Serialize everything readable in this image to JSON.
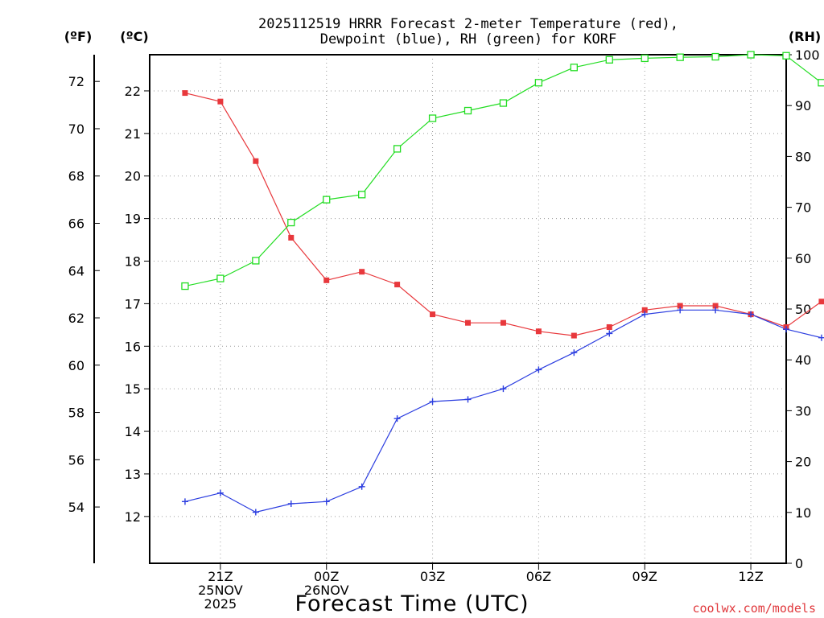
{
  "chart_data": {
    "type": "line",
    "title": [
      "2025112519 HRRR Forecast 2-meter Temperature (red),",
      "Dewpoint (blue), RH (green) for KORF"
    ],
    "units": {
      "fahrenheit": "(ºF)",
      "celsius": "(ºC)",
      "rh": "(RH)"
    },
    "xlabel": "Forecast Time (UTC)",
    "credit": "coolwx.com/models",
    "x_ticks": [
      {
        "lines": [
          "21Z",
          "25NOV",
          "2025"
        ],
        "hour": 2
      },
      {
        "lines": [
          "00Z",
          "26NOV"
        ],
        "hour": 5
      },
      {
        "lines": [
          "03Z"
        ],
        "hour": 8
      },
      {
        "lines": [
          "06Z"
        ],
        "hour": 11
      },
      {
        "lines": [
          "09Z"
        ],
        "hour": 14
      },
      {
        "lines": [
          "12Z"
        ],
        "hour": 17
      }
    ],
    "x_range": [
      0,
      18
    ],
    "ylim_c": [
      10.9,
      22.85
    ],
    "ylim_f": [
      51.62,
      73.13
    ],
    "ylim_rh": [
      0,
      100
    ],
    "y_ticks_c": [
      12,
      13,
      14,
      15,
      16,
      17,
      18,
      19,
      20,
      21,
      22
    ],
    "y_ticks_f": [
      54,
      56,
      58,
      60,
      62,
      64,
      66,
      68,
      70,
      72
    ],
    "y_ticks_rh": [
      0,
      10,
      20,
      30,
      40,
      50,
      60,
      70,
      80,
      90,
      100
    ],
    "series": [
      {
        "name": "Temperature",
        "axis": "celsius",
        "color": "#e8383c",
        "marker": "filled-square",
        "hours": [
          1,
          2,
          3,
          4,
          5,
          6,
          7,
          8,
          9,
          10,
          11,
          12,
          13,
          14,
          15,
          16,
          17,
          18
        ],
        "values": [
          21.95,
          21.75,
          20.35,
          18.55,
          17.55,
          17.75,
          17.45,
          16.75,
          16.55,
          16.55,
          16.35,
          16.25,
          16.45,
          16.85,
          16.95,
          16.95,
          16.75,
          16.45
        ]
      },
      {
        "name": "Temperature (end)",
        "axis": "celsius",
        "color": "#e8383c",
        "marker": "filled-square",
        "hours": [
          19
        ],
        "values": [
          17.05
        ]
      },
      {
        "name": "Dewpoint",
        "axis": "celsius",
        "color": "#2c3ee0",
        "marker": "plus",
        "hours": [
          1,
          2,
          3,
          4,
          5,
          6,
          7,
          8,
          9,
          10,
          11,
          12,
          13,
          14,
          15,
          16,
          17,
          18
        ],
        "values": [
          12.35,
          12.55,
          12.1,
          12.3,
          12.35,
          12.7,
          14.3,
          14.7,
          14.75,
          15.0,
          15.45,
          15.85,
          16.3,
          16.75,
          16.85,
          16.85,
          16.75,
          16.4
        ]
      },
      {
        "name": "Dewpoint (end)",
        "axis": "celsius",
        "color": "#2c3ee0",
        "marker": "plus",
        "hours": [
          19
        ],
        "values": [
          16.2
        ]
      },
      {
        "name": "RH",
        "axis": "rh",
        "color": "#22dd22",
        "marker": "open-square",
        "hours": [
          1,
          2,
          3,
          4,
          5,
          6,
          7,
          8,
          9,
          10,
          11,
          12,
          13,
          14,
          15,
          16,
          17,
          18
        ],
        "values": [
          54.5,
          56,
          59.5,
          67,
          71.5,
          72.5,
          81.5,
          87.5,
          89,
          90.5,
          94.5,
          97.5,
          99,
          99.3,
          99.5,
          99.6,
          100,
          99.8
        ]
      },
      {
        "name": "RH (end)",
        "axis": "rh",
        "color": "#22dd22",
        "marker": "open-square",
        "hours": [
          19
        ],
        "values": [
          94.5
        ]
      }
    ]
  }
}
